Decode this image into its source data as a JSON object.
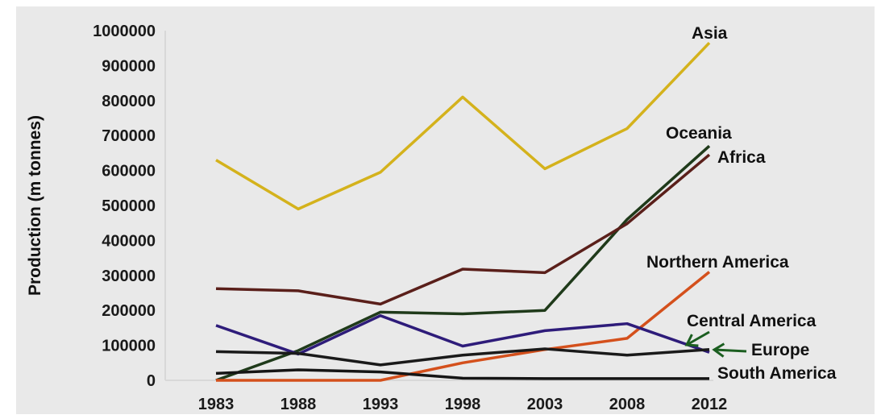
{
  "chart_data": {
    "type": "line",
    "title": "",
    "xlabel": "",
    "ylabel": "Production (m tonnes)",
    "x": [
      "1983",
      "1988",
      "1993",
      "1998",
      "2003",
      "2008",
      "2012"
    ],
    "ylim": [
      0,
      1000000
    ],
    "yticks": [
      "0",
      "100000",
      "200000",
      "300000",
      "400000",
      "500000",
      "600000",
      "700000",
      "800000",
      "900000",
      "1000000"
    ],
    "grid": false,
    "legend": "inline labels at line ends",
    "series": [
      {
        "name": "Asia",
        "color": "#d4b21c",
        "values": [
          630000,
          490000,
          595000,
          810000,
          605000,
          720000,
          965000
        ]
      },
      {
        "name": "Oceania",
        "color": "#1f3a1a",
        "values": [
          0,
          85000,
          195000,
          190000,
          200000,
          460000,
          670000
        ]
      },
      {
        "name": "Africa",
        "color": "#5a1f1a",
        "values": [
          262000,
          256000,
          218000,
          318000,
          308000,
          448000,
          645000
        ]
      },
      {
        "name": "Northern America",
        "color": "#d4501c",
        "values": [
          0,
          0,
          0,
          50000,
          88000,
          120000,
          310000
        ]
      },
      {
        "name": "Central America",
        "color": "#2e1c7a",
        "values": [
          157000,
          75000,
          185000,
          98000,
          142000,
          162000,
          80000
        ]
      },
      {
        "name": "Europe",
        "color": "#1a1a1a",
        "values": [
          82000,
          77000,
          44000,
          72000,
          90000,
          72000,
          88000
        ]
      },
      {
        "name": "South America",
        "color": "#151515",
        "values": [
          20000,
          30000,
          24000,
          6000,
          5000,
          5000,
          5000
        ]
      }
    ]
  }
}
